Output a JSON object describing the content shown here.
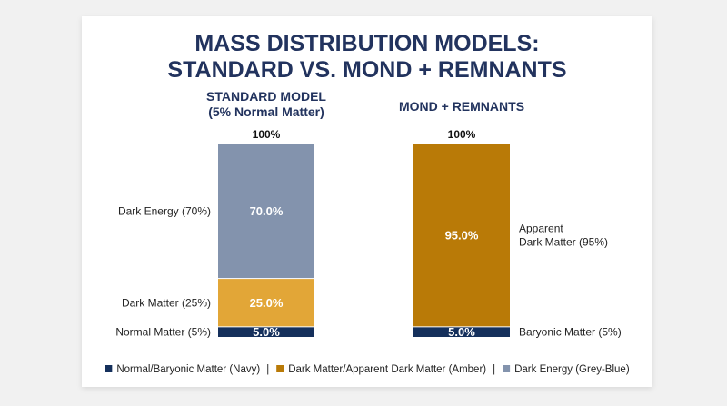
{
  "title_lines": [
    "MASS DISTRIBUTION MODELS:",
    "STANDARD VS. MOND + REMNANTS"
  ],
  "colors": {
    "navy": "#15305c",
    "amber": "#e2a637",
    "dark_amber": "#b97a07",
    "grey_blue": "#8393ad",
    "title": "#22335e"
  },
  "chart_data": {
    "type": "bar",
    "stacked": true,
    "unit": "%",
    "ylim": [
      0,
      100
    ],
    "bars": [
      {
        "title_lines": [
          "STANDARD MODEL",
          "(5% Normal Matter)"
        ],
        "total_label": "100%",
        "segments": [
          {
            "label_lines": [
              "Normal Matter (5%)"
            ],
            "value": 5,
            "value_label": "5.0%",
            "color": "#15305c",
            "label_side": "left"
          },
          {
            "label_lines": [
              "Dark Matter (25%)"
            ],
            "value": 25,
            "value_label": "25.0%",
            "color": "#e2a637",
            "label_side": "left"
          },
          {
            "label_lines": [
              "Dark Energy (70%)"
            ],
            "value": 70,
            "value_label": "70.0%",
            "color": "#8393ad",
            "label_side": "left"
          }
        ]
      },
      {
        "title_lines": [
          "MOND + REMNANTS"
        ],
        "total_label": "100%",
        "segments": [
          {
            "label_lines": [
              "Baryonic Matter (5%)"
            ],
            "value": 5,
            "value_label": "5.0%",
            "color": "#15305c",
            "label_side": "right"
          },
          {
            "label_lines": [
              "Apparent",
              "Dark Matter (95%)"
            ],
            "value": 95,
            "value_label": "95.0%",
            "color": "#b97a07",
            "label_side": "right"
          }
        ]
      }
    ],
    "legend": [
      {
        "label": "Normal/Baryonic Matter (Navy)",
        "color": "#15305c"
      },
      {
        "label": "Dark Matter/Apparent Dark Matter (Amber)",
        "color": "#b97a07"
      },
      {
        "label": "Dark Energy (Grey-Blue)",
        "color": "#8393ad"
      }
    ],
    "legend_separator": "|"
  }
}
